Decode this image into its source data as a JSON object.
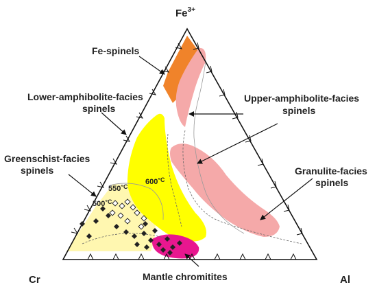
{
  "vertices": {
    "top": "Fe",
    "top_sup": "3+",
    "left": "Cr",
    "right": "Al"
  },
  "field_labels": {
    "fe_spinels": "Fe-spinels",
    "lower_amphibolite_1": "Lower-amphibolite-facies",
    "lower_amphibolite_2": "spinels",
    "upper_amphibolite_1": "Upper-amphibolite-facies",
    "upper_amphibolite_2": "spinels",
    "greenschist_1": "Greenschist-facies",
    "greenschist_2": "spinels",
    "granulite_1": "Granulite-facies",
    "granulite_2": "spinels",
    "mantle": "Mantle chromitites"
  },
  "temperatures": {
    "t600": "600",
    "t550": "550",
    "t500": "500",
    "unit": "°C"
  },
  "colors": {
    "fe_spinel_field": "#f0832a",
    "amphibolite_upper_field": "#f5a9a9",
    "amphibolite_lower_field": "#ffff00",
    "greenschist_field": "#fff7b0",
    "mantle_points": "#e8178f",
    "data_points": "#222222"
  }
}
